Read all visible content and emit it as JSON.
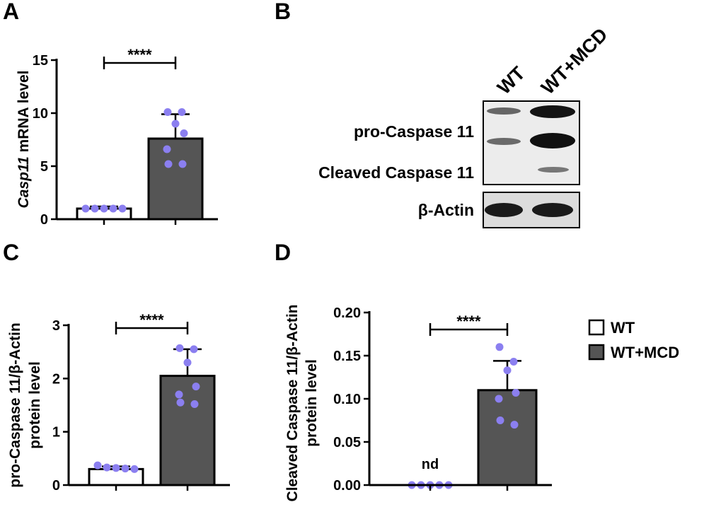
{
  "panel_letters": {
    "a": "A",
    "b": "B",
    "c": "C",
    "d": "D"
  },
  "colors": {
    "wt_bar": "#ffffff",
    "mcd_bar": "#555555",
    "dot": "#8b7ff0",
    "axis": "#000000"
  },
  "legend": {
    "items": [
      {
        "label": "WT",
        "fill": "#ffffff"
      },
      {
        "label": "WT+MCD",
        "fill": "#555555"
      }
    ]
  },
  "western_blot": {
    "lanes": [
      "WT",
      "WT+MCD"
    ],
    "labels": [
      "pro-Caspase 11",
      "Cleaved Caspase 11",
      "β-Actin"
    ]
  },
  "chart_data": [
    {
      "panel": "A",
      "type": "bar",
      "categories": [
        "WT",
        "WT+MCD"
      ],
      "ylabel_italic": "Casp11",
      "ylabel_rest": " mRNA level",
      "ylim": [
        0,
        15
      ],
      "yticks": [
        "0",
        "5",
        "10",
        "15"
      ],
      "values": [
        1.0,
        7.6
      ],
      "errors": [
        0.2,
        2.3
      ],
      "points": [
        [
          1.0,
          1.0,
          1.0,
          1.0,
          1.0
        ],
        [
          10.1,
          10.1,
          9.0,
          8.1,
          6.6,
          5.2,
          5.2
        ]
      ],
      "significance": "****"
    },
    {
      "panel": "C",
      "type": "bar",
      "categories": [
        "WT",
        "WT+MCD"
      ],
      "ylabel_lines": [
        "pro-Caspase 11/β-Actin",
        "protein level"
      ],
      "ylim": [
        0,
        3
      ],
      "yticks": [
        "0",
        "1",
        "2",
        "3"
      ],
      "values": [
        0.3,
        2.05
      ],
      "errors": [
        0.05,
        0.5
      ],
      "points": [
        [
          0.37,
          0.33,
          0.32,
          0.31,
          0.3
        ],
        [
          2.57,
          2.55,
          2.3,
          1.85,
          1.7,
          1.55,
          1.52
        ]
      ],
      "significance": "****"
    },
    {
      "panel": "D",
      "type": "bar",
      "categories": [
        "WT",
        "WT+MCD"
      ],
      "ylabel_lines": [
        "Cleaved Caspase 11/β-Actin",
        "protein level"
      ],
      "ylim": [
        0,
        0.2
      ],
      "yticks": [
        "0.00",
        "0.05",
        "0.10",
        "0.15",
        "0.20"
      ],
      "values": [
        0.0,
        0.11
      ],
      "errors": [
        0.0,
        0.034
      ],
      "points": [
        [
          0,
          0,
          0,
          0,
          0
        ],
        [
          0.16,
          0.143,
          0.133,
          0.107,
          0.1,
          0.075,
          0.07
        ]
      ],
      "significance": "****",
      "annotations": [
        "nd"
      ]
    }
  ]
}
